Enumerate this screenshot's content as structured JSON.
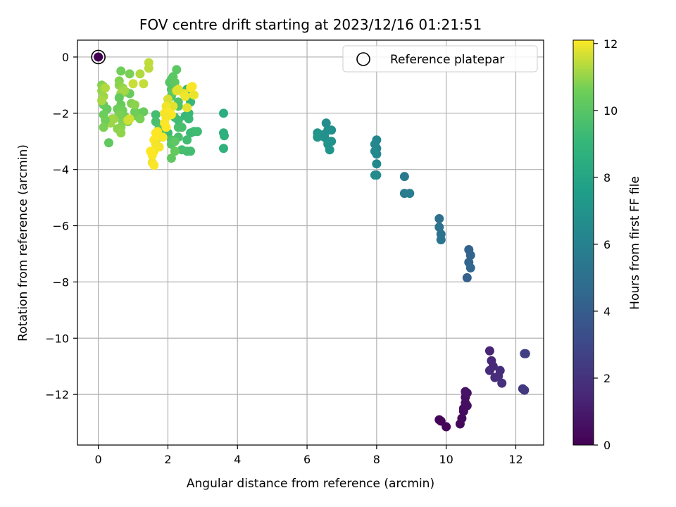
{
  "chart_data": {
    "type": "scatter",
    "title": "FOV centre drift starting at 2023/12/16 01:21:51",
    "xlabel": "Angular distance from reference (arcmin)",
    "ylabel": "Rotation from reference (arcmin)",
    "xlim": [
      -0.6,
      12.8
    ],
    "ylim": [
      -13.8,
      0.6
    ],
    "xticks": [
      0,
      2,
      4,
      6,
      8,
      10,
      12
    ],
    "yticks": [
      0,
      -2,
      -4,
      -6,
      -8,
      -10,
      -12
    ],
    "grid": true,
    "legend": {
      "position": "top-right",
      "entries": [
        "Reference platepar"
      ]
    },
    "reference_point": {
      "x": 0,
      "y": 0,
      "c": 0
    },
    "colorbar": {
      "label": "Hours from first FF file",
      "min": 0,
      "max": 12.1,
      "ticks": [
        0,
        2,
        4,
        6,
        8,
        10,
        12
      ],
      "colormap": "viridis"
    },
    "points": [
      [
        9.85,
        -12.95,
        0.1
      ],
      [
        9.8,
        -12.9,
        0.15
      ],
      [
        10.0,
        -13.15,
        0.2
      ],
      [
        10.4,
        -13.05,
        0.3
      ],
      [
        10.45,
        -12.85,
        0.35
      ],
      [
        10.5,
        -12.5,
        0.45
      ],
      [
        10.55,
        -12.3,
        0.5
      ],
      [
        10.6,
        -12.4,
        0.55
      ],
      [
        10.55,
        -12.1,
        0.6
      ],
      [
        10.6,
        -11.95,
        0.7
      ],
      [
        10.55,
        -11.9,
        0.75
      ],
      [
        10.5,
        -12.6,
        0.4
      ],
      [
        11.25,
        -10.45,
        1.4
      ],
      [
        11.3,
        -10.8,
        1.5
      ],
      [
        11.35,
        -11.0,
        1.55
      ],
      [
        11.25,
        -11.15,
        1.6
      ],
      [
        11.4,
        -11.4,
        1.7
      ],
      [
        11.55,
        -11.15,
        1.75
      ],
      [
        11.5,
        -11.35,
        1.8
      ],
      [
        11.6,
        -11.6,
        1.85
      ],
      [
        12.2,
        -11.8,
        2.2
      ],
      [
        12.25,
        -11.85,
        2.3
      ],
      [
        12.25,
        -10.55,
        2.5
      ],
      [
        12.28,
        -10.55,
        2.6
      ],
      [
        10.65,
        -6.85,
        4.3
      ],
      [
        10.7,
        -7.05,
        4.35
      ],
      [
        10.65,
        -7.3,
        4.4
      ],
      [
        10.7,
        -7.5,
        4.5
      ],
      [
        10.6,
        -7.85,
        4.2
      ],
      [
        9.8,
        -5.75,
        5.0
      ],
      [
        9.8,
        -6.05,
        5.1
      ],
      [
        9.85,
        -6.3,
        5.2
      ],
      [
        9.85,
        -6.5,
        5.25
      ],
      [
        8.8,
        -4.25,
        5.6
      ],
      [
        8.8,
        -4.85,
        5.7
      ],
      [
        8.95,
        -4.85,
        5.8
      ],
      [
        8.0,
        -2.95,
        6.2
      ],
      [
        7.95,
        -3.1,
        6.25
      ],
      [
        8.0,
        -3.25,
        6.3
      ],
      [
        7.95,
        -3.35,
        6.35
      ],
      [
        8.0,
        -3.45,
        6.4
      ],
      [
        8.0,
        -3.8,
        6.45
      ],
      [
        8.0,
        -4.2,
        6.5
      ],
      [
        7.95,
        -4.2,
        6.55
      ],
      [
        6.3,
        -2.7,
        6.9
      ],
      [
        6.3,
        -2.85,
        7.0
      ],
      [
        6.55,
        -2.35,
        6.7
      ],
      [
        6.6,
        -2.6,
        6.75
      ],
      [
        6.7,
        -2.6,
        6.8
      ],
      [
        6.5,
        -2.85,
        6.85
      ],
      [
        6.6,
        -3.0,
        6.9
      ],
      [
        6.7,
        -3.0,
        6.95
      ],
      [
        6.6,
        -3.1,
        7.0
      ],
      [
        6.65,
        -3.3,
        7.1
      ],
      [
        6.35,
        -2.75,
        7.2
      ],
      [
        6.5,
        -2.75,
        6.8
      ],
      [
        3.6,
        -2.0,
        8.5
      ],
      [
        3.6,
        -2.7,
        8.6
      ],
      [
        3.62,
        -2.8,
        8.65
      ],
      [
        3.6,
        -3.25,
        8.7
      ],
      [
        2.55,
        -1.15,
        9.0
      ],
      [
        2.65,
        -1.6,
        9.05
      ],
      [
        2.6,
        -2.0,
        9.1
      ],
      [
        2.5,
        -2.1,
        9.15
      ],
      [
        2.6,
        -2.2,
        9.2
      ],
      [
        2.65,
        -2.7,
        9.25
      ],
      [
        2.75,
        -2.65,
        9.3
      ],
      [
        2.85,
        -2.65,
        9.35
      ],
      [
        2.55,
        -2.95,
        9.4
      ],
      [
        2.55,
        -3.35,
        9.45
      ],
      [
        2.65,
        -3.35,
        9.5
      ],
      [
        2.4,
        -3.3,
        9.55
      ],
      [
        2.3,
        -2.85,
        9.6
      ],
      [
        2.3,
        -2.5,
        9.65
      ],
      [
        2.2,
        -2.15,
        9.7
      ],
      [
        2.3,
        -1.75,
        9.75
      ],
      [
        2.3,
        -1.6,
        9.8
      ],
      [
        2.1,
        -1.4,
        9.85
      ],
      [
        2.1,
        -1.15,
        9.9
      ],
      [
        2.05,
        -0.9,
        9.95
      ],
      [
        2.1,
        -0.8,
        10.0
      ],
      [
        2.15,
        -0.7,
        10.05
      ],
      [
        2.25,
        -0.45,
        10.1
      ],
      [
        2.2,
        -0.9,
        10.15
      ],
      [
        2.15,
        -1.25,
        10.2
      ],
      [
        2.3,
        -2.25,
        9.4
      ],
      [
        2.4,
        -2.5,
        9.6
      ],
      [
        2.0,
        -2.7,
        9.3
      ],
      [
        2.1,
        -2.95,
        9.8
      ],
      [
        2.1,
        -3.1,
        10.0
      ],
      [
        2.2,
        -3.0,
        10.1
      ],
      [
        2.1,
        -3.6,
        10.2
      ],
      [
        2.2,
        -3.35,
        10.3
      ],
      [
        1.65,
        -2.05,
        9.5
      ],
      [
        1.65,
        -2.3,
        9.6
      ],
      [
        1.75,
        -2.5,
        9.7
      ],
      [
        1.8,
        -2.6,
        9.8
      ],
      [
        1.75,
        -2.85,
        9.9
      ],
      [
        1.2,
        -2.0,
        10.3
      ],
      [
        1.3,
        -1.95,
        10.4
      ],
      [
        1.05,
        -1.95,
        10.5
      ],
      [
        1.1,
        -2.1,
        10.6
      ],
      [
        1.2,
        -2.2,
        10.7
      ],
      [
        0.95,
        -1.65,
        10.8
      ],
      [
        1.05,
        -1.7,
        10.9
      ],
      [
        0.9,
        -1.3,
        10.4
      ],
      [
        0.8,
        -1.25,
        10.5
      ],
      [
        0.65,
        -0.5,
        10.6
      ],
      [
        0.9,
        -0.6,
        10.7
      ],
      [
        0.6,
        -0.85,
        10.8
      ],
      [
        0.6,
        -1.0,
        10.9
      ],
      [
        0.7,
        -1.1,
        11.0
      ],
      [
        0.65,
        -1.3,
        11.1
      ],
      [
        0.75,
        -1.2,
        11.15
      ],
      [
        0.6,
        -1.45,
        10.3
      ],
      [
        0.65,
        -1.7,
        10.4
      ],
      [
        0.55,
        -1.85,
        10.5
      ],
      [
        0.7,
        -1.9,
        10.6
      ],
      [
        0.75,
        -2.1,
        10.65
      ],
      [
        0.6,
        -2.05,
        10.7
      ],
      [
        0.7,
        -2.3,
        10.75
      ],
      [
        0.85,
        -2.3,
        10.8
      ],
      [
        0.65,
        -2.5,
        10.85
      ],
      [
        0.55,
        -2.55,
        10.9
      ],
      [
        0.65,
        -2.7,
        10.95
      ],
      [
        0.45,
        -2.2,
        11.0
      ],
      [
        0.35,
        -2.35,
        11.05
      ],
      [
        0.4,
        -2.2,
        11.1
      ],
      [
        0.3,
        -3.05,
        10.2
      ],
      [
        0.25,
        -1.85,
        10.3
      ],
      [
        0.15,
        -1.7,
        10.4
      ],
      [
        0.15,
        -2.05,
        10.5
      ],
      [
        0.2,
        -2.25,
        10.6
      ],
      [
        0.15,
        -2.5,
        10.7
      ],
      [
        0.1,
        -1.0,
        10.8
      ],
      [
        0.15,
        -1.05,
        10.9
      ],
      [
        0.1,
        -1.2,
        11.0
      ],
      [
        0.15,
        -1.4,
        11.1
      ],
      [
        0.1,
        -1.55,
        11.2
      ],
      [
        0.2,
        -1.1,
        11.3
      ],
      [
        1.2,
        -0.6,
        11.3
      ],
      [
        1.45,
        -0.4,
        11.4
      ],
      [
        1.45,
        -0.2,
        11.45
      ],
      [
        1.3,
        -0.95,
        11.5
      ],
      [
        1.0,
        -0.95,
        11.55
      ],
      [
        0.85,
        -2.25,
        11.6
      ],
      [
        0.9,
        -2.2,
        11.65
      ],
      [
        2.0,
        -1.5,
        11.7
      ],
      [
        2.05,
        -1.8,
        11.75
      ],
      [
        2.15,
        -1.75,
        11.8
      ],
      [
        2.25,
        -1.2,
        11.85
      ],
      [
        2.45,
        -1.3,
        11.9
      ],
      [
        2.5,
        -1.4,
        11.95
      ],
      [
        2.65,
        -1.1,
        12.0
      ],
      [
        2.7,
        -1.05,
        12.05
      ],
      [
        2.75,
        -1.35,
        11.9
      ],
      [
        2.55,
        -1.8,
        11.85
      ],
      [
        2.3,
        -1.15,
        11.8
      ],
      [
        1.95,
        -1.75,
        11.95
      ],
      [
        1.9,
        -2.0,
        12.0
      ],
      [
        2.0,
        -1.95,
        12.05
      ],
      [
        2.1,
        -2.05,
        12.1
      ],
      [
        1.95,
        -2.15,
        12.0
      ],
      [
        1.9,
        -2.35,
        12.05
      ],
      [
        1.95,
        -2.5,
        12.1
      ],
      [
        1.7,
        -2.65,
        12.0
      ],
      [
        1.7,
        -2.85,
        12.05
      ],
      [
        1.6,
        -2.95,
        12.1
      ],
      [
        1.65,
        -3.1,
        12.0
      ],
      [
        1.6,
        -3.35,
        12.05
      ],
      [
        1.55,
        -3.5,
        12.1
      ],
      [
        1.55,
        -3.75,
        12.0
      ],
      [
        1.6,
        -3.85,
        12.05
      ],
      [
        1.5,
        -3.35,
        12.1
      ],
      [
        1.75,
        -3.2,
        12.0
      ],
      [
        1.85,
        -2.85,
        12.05
      ],
      [
        1.65,
        -2.7,
        12.1
      ]
    ]
  }
}
